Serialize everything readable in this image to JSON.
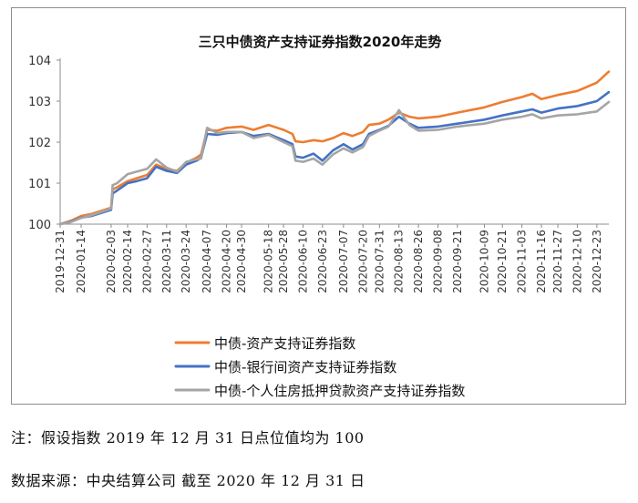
{
  "chart_data": {
    "type": "line",
    "title": "三只中债资产支持证券指数2020年走势",
    "xlabel": "",
    "ylabel": "",
    "ylim": [
      100,
      104
    ],
    "y_ticks": [
      "100",
      "101",
      "102",
      "103",
      "104"
    ],
    "x_tick_labels": [
      "2019-12-31",
      "2020-01-14",
      "2020-02-03",
      "2020-02-14",
      "2020-02-27",
      "2020-03-11",
      "2020-03-24",
      "2020-04-07",
      "2020-04-20",
      "2020-04-30",
      "2020-05-18",
      "2020-05-28",
      "2020-06-10",
      "2020-06-23",
      "2020-07-07",
      "2020-07-20",
      "2020-07-31",
      "2020-08-13",
      "2020-08-26",
      "2020-09-08",
      "2020-09-21",
      "2020-10-09",
      "2020-10-21",
      "2020-11-03",
      "2020-11-16",
      "2020-11-27",
      "2020-12-10",
      "2020-12-23"
    ],
    "grid": false,
    "legend_position": "bottom",
    "colors": [
      "#ED7D31",
      "#4472C4",
      "#A5A5A5"
    ],
    "x_axis_end": "2020-12-31",
    "series": [
      {
        "name": "中债-资产支持证券指数",
        "points": [
          [
            "2019-12-31",
            100.0
          ],
          [
            "2020-01-07",
            100.08
          ],
          [
            "2020-01-14",
            100.2
          ],
          [
            "2020-01-21",
            100.25
          ],
          [
            "2020-02-03",
            100.4
          ],
          [
            "2020-02-04",
            100.85
          ],
          [
            "2020-02-07",
            100.9
          ],
          [
            "2020-02-14",
            101.05
          ],
          [
            "2020-02-20",
            101.12
          ],
          [
            "2020-02-27",
            101.2
          ],
          [
            "2020-03-04",
            101.45
          ],
          [
            "2020-03-11",
            101.35
          ],
          [
            "2020-03-18",
            101.3
          ],
          [
            "2020-03-24",
            101.5
          ],
          [
            "2020-03-31",
            101.62
          ],
          [
            "2020-04-03",
            101.7
          ],
          [
            "2020-04-07",
            102.3
          ],
          [
            "2020-04-14",
            102.28
          ],
          [
            "2020-04-20",
            102.35
          ],
          [
            "2020-04-30",
            102.38
          ],
          [
            "2020-05-08",
            102.3
          ],
          [
            "2020-05-18",
            102.42
          ],
          [
            "2020-05-28",
            102.3
          ],
          [
            "2020-06-03",
            102.2
          ],
          [
            "2020-06-05",
            102.02
          ],
          [
            "2020-06-10",
            102.0
          ],
          [
            "2020-06-17",
            102.05
          ],
          [
            "2020-06-23",
            102.02
          ],
          [
            "2020-06-30",
            102.1
          ],
          [
            "2020-07-07",
            102.22
          ],
          [
            "2020-07-13",
            102.15
          ],
          [
            "2020-07-20",
            102.25
          ],
          [
            "2020-07-24",
            102.42
          ],
          [
            "2020-07-31",
            102.45
          ],
          [
            "2020-08-06",
            102.55
          ],
          [
            "2020-08-13",
            102.72
          ],
          [
            "2020-08-20",
            102.62
          ],
          [
            "2020-08-26",
            102.58
          ],
          [
            "2020-09-08",
            102.62
          ],
          [
            "2020-09-21",
            102.72
          ],
          [
            "2020-10-09",
            102.85
          ],
          [
            "2020-10-21",
            102.98
          ],
          [
            "2020-11-03",
            103.1
          ],
          [
            "2020-11-10",
            103.18
          ],
          [
            "2020-11-16",
            103.05
          ],
          [
            "2020-11-27",
            103.15
          ],
          [
            "2020-12-10",
            103.25
          ],
          [
            "2020-12-23",
            103.45
          ],
          [
            "2020-12-31",
            103.72
          ]
        ]
      },
      {
        "name": "中债-银行间资产支持证券指数",
        "points": [
          [
            "2019-12-31",
            100.0
          ],
          [
            "2020-01-07",
            100.06
          ],
          [
            "2020-01-14",
            100.16
          ],
          [
            "2020-01-21",
            100.2
          ],
          [
            "2020-02-03",
            100.35
          ],
          [
            "2020-02-04",
            100.75
          ],
          [
            "2020-02-07",
            100.82
          ],
          [
            "2020-02-14",
            101.0
          ],
          [
            "2020-02-20",
            101.05
          ],
          [
            "2020-02-27",
            101.12
          ],
          [
            "2020-03-04",
            101.4
          ],
          [
            "2020-03-11",
            101.3
          ],
          [
            "2020-03-18",
            101.25
          ],
          [
            "2020-03-24",
            101.45
          ],
          [
            "2020-03-31",
            101.55
          ],
          [
            "2020-04-03",
            101.62
          ],
          [
            "2020-04-07",
            102.2
          ],
          [
            "2020-04-14",
            102.18
          ],
          [
            "2020-04-20",
            102.22
          ],
          [
            "2020-04-30",
            102.25
          ],
          [
            "2020-05-08",
            102.15
          ],
          [
            "2020-05-18",
            102.2
          ],
          [
            "2020-05-28",
            102.05
          ],
          [
            "2020-06-03",
            101.95
          ],
          [
            "2020-06-05",
            101.65
          ],
          [
            "2020-06-10",
            101.62
          ],
          [
            "2020-06-17",
            101.72
          ],
          [
            "2020-06-23",
            101.55
          ],
          [
            "2020-06-30",
            101.8
          ],
          [
            "2020-07-07",
            101.95
          ],
          [
            "2020-07-13",
            101.82
          ],
          [
            "2020-07-20",
            101.95
          ],
          [
            "2020-07-24",
            102.2
          ],
          [
            "2020-07-31",
            102.3
          ],
          [
            "2020-08-06",
            102.4
          ],
          [
            "2020-08-13",
            102.62
          ],
          [
            "2020-08-20",
            102.45
          ],
          [
            "2020-08-26",
            102.35
          ],
          [
            "2020-09-08",
            102.38
          ],
          [
            "2020-09-21",
            102.45
          ],
          [
            "2020-10-09",
            102.55
          ],
          [
            "2020-10-21",
            102.65
          ],
          [
            "2020-11-03",
            102.75
          ],
          [
            "2020-11-10",
            102.8
          ],
          [
            "2020-11-16",
            102.72
          ],
          [
            "2020-11-27",
            102.82
          ],
          [
            "2020-12-10",
            102.88
          ],
          [
            "2020-12-23",
            103.0
          ],
          [
            "2020-12-31",
            103.22
          ]
        ]
      },
      {
        "name": "中债-个人住房抵押贷款资产支持证券指数",
        "points": [
          [
            "2019-12-31",
            100.0
          ],
          [
            "2020-01-07",
            100.05
          ],
          [
            "2020-01-14",
            100.15
          ],
          [
            "2020-01-21",
            100.22
          ],
          [
            "2020-02-03",
            100.38
          ],
          [
            "2020-02-04",
            100.95
          ],
          [
            "2020-02-07",
            101.0
          ],
          [
            "2020-02-14",
            101.22
          ],
          [
            "2020-02-20",
            101.28
          ],
          [
            "2020-02-27",
            101.35
          ],
          [
            "2020-03-04",
            101.58
          ],
          [
            "2020-03-11",
            101.38
          ],
          [
            "2020-03-18",
            101.28
          ],
          [
            "2020-03-24",
            101.52
          ],
          [
            "2020-03-31",
            101.58
          ],
          [
            "2020-04-03",
            101.6
          ],
          [
            "2020-04-07",
            102.35
          ],
          [
            "2020-04-14",
            102.22
          ],
          [
            "2020-04-20",
            102.25
          ],
          [
            "2020-04-30",
            102.25
          ],
          [
            "2020-05-08",
            102.1
          ],
          [
            "2020-05-18",
            102.18
          ],
          [
            "2020-05-28",
            102.0
          ],
          [
            "2020-06-03",
            101.9
          ],
          [
            "2020-06-05",
            101.55
          ],
          [
            "2020-06-10",
            101.52
          ],
          [
            "2020-06-17",
            101.6
          ],
          [
            "2020-06-23",
            101.45
          ],
          [
            "2020-06-30",
            101.7
          ],
          [
            "2020-07-07",
            101.85
          ],
          [
            "2020-07-13",
            101.75
          ],
          [
            "2020-07-20",
            101.88
          ],
          [
            "2020-07-24",
            102.15
          ],
          [
            "2020-07-31",
            102.28
          ],
          [
            "2020-08-06",
            102.38
          ],
          [
            "2020-08-13",
            102.78
          ],
          [
            "2020-08-20",
            102.42
          ],
          [
            "2020-08-26",
            102.28
          ],
          [
            "2020-09-08",
            102.3
          ],
          [
            "2020-09-21",
            102.38
          ],
          [
            "2020-10-09",
            102.45
          ],
          [
            "2020-10-21",
            102.55
          ],
          [
            "2020-11-03",
            102.62
          ],
          [
            "2020-11-10",
            102.68
          ],
          [
            "2020-11-16",
            102.58
          ],
          [
            "2020-11-27",
            102.65
          ],
          [
            "2020-12-10",
            102.68
          ],
          [
            "2020-12-23",
            102.75
          ],
          [
            "2020-12-31",
            102.98
          ]
        ]
      }
    ]
  },
  "notes": {
    "line1": "注：假设指数 2019 年 12 月 31 日点位值均为 100",
    "line2": "数据来源：中央结算公司  截至 2020 年 12 月 31 日"
  }
}
